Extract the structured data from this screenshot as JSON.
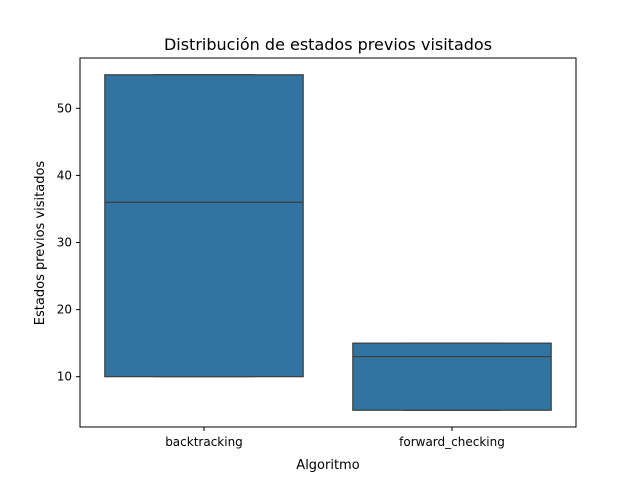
{
  "chart_data": {
    "type": "box",
    "title": "Distribución de estados previos visitados",
    "xlabel": "Algoritmo",
    "ylabel": "Estados previos visitados",
    "categories": [
      "backtracking",
      "forward_checking"
    ],
    "boxes": [
      {
        "category": "backtracking",
        "min": 10,
        "q1": 10,
        "median": 36,
        "q3": 55,
        "max": 55
      },
      {
        "category": "forward_checking",
        "min": 5,
        "q1": 5,
        "median": 13,
        "q3": 15,
        "max": 15
      }
    ],
    "ylim": [
      2.5,
      57.5
    ],
    "yticks": [
      10,
      20,
      30,
      40,
      50
    ],
    "grid": false,
    "colors": {
      "box_fill": "#3274a1",
      "box_edge": "#3d3d3d"
    }
  }
}
